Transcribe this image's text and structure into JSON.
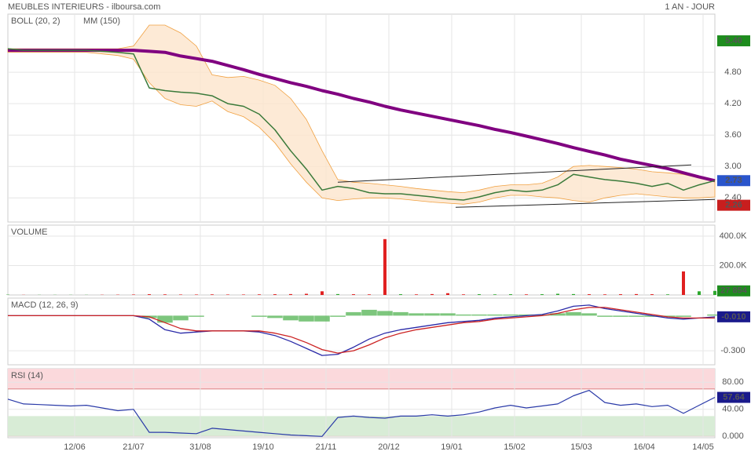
{
  "chart_data": [
    {
      "type": "line",
      "title": "MEUBLES INTERIEURS - ilboursa.com",
      "subtitle": "1 AN - JOUR",
      "x": [
        0,
        4,
        8,
        12,
        16,
        20,
        24,
        28,
        32,
        36,
        40,
        44,
        48,
        52,
        56,
        60,
        64,
        68,
        72,
        76,
        80,
        84,
        88,
        92,
        96,
        100,
        104,
        108,
        112,
        116,
        120,
        124,
        128,
        132,
        136,
        140,
        144,
        148,
        152,
        156,
        160,
        164,
        168,
        172,
        176,
        180
      ],
      "xlim": [
        0,
        180
      ],
      "ylim": [
        1.94,
        5.91
      ],
      "yticks": [
        {
          "value": 4.8,
          "label": "4.80"
        },
        {
          "value": 4.2,
          "label": "4.20"
        },
        {
          "value": 3.6,
          "label": "3.60"
        },
        {
          "value": 3.0,
          "label": "3.00"
        },
        {
          "value": 2.4,
          "label": "2.40"
        }
      ],
      "grid": true,
      "band": {
        "name": "BOLL (20, 2)",
        "color": "#f0a040",
        "upper": [
          5.25,
          5.25,
          5.25,
          5.25,
          5.25,
          5.25,
          5.25,
          5.25,
          5.3,
          5.7,
          5.7,
          5.55,
          5.3,
          4.75,
          4.7,
          4.72,
          4.65,
          4.55,
          4.3,
          3.9,
          3.3,
          2.75,
          2.7,
          2.68,
          2.65,
          2.62,
          2.58,
          2.55,
          2.52,
          2.5,
          2.55,
          2.62,
          2.65,
          2.65,
          2.68,
          2.8,
          3.0,
          3.02,
          3.0,
          2.98,
          2.95,
          2.9,
          2.88,
          2.85,
          2.78,
          2.75
        ],
        "lower": [
          5.18,
          5.18,
          5.18,
          5.18,
          5.18,
          5.18,
          5.15,
          5.12,
          5.05,
          4.6,
          4.3,
          4.18,
          4.15,
          4.25,
          4.05,
          3.95,
          3.75,
          3.45,
          3.05,
          2.7,
          2.4,
          2.35,
          2.38,
          2.4,
          2.4,
          2.38,
          2.35,
          2.32,
          2.3,
          2.28,
          2.32,
          2.4,
          2.45,
          2.45,
          2.42,
          2.4,
          2.35,
          2.32,
          2.4,
          2.45,
          2.48,
          2.45,
          2.42,
          2.4,
          2.4,
          2.42
        ]
      },
      "series": [
        {
          "name": "MM (150)",
          "color": "#800080",
          "width": 4,
          "values": [
            5.22,
            5.22,
            5.22,
            5.22,
            5.22,
            5.22,
            5.22,
            5.22,
            5.22,
            5.2,
            5.18,
            5.11,
            5.06,
            5.01,
            4.93,
            4.85,
            4.76,
            4.68,
            4.6,
            4.53,
            4.45,
            4.38,
            4.3,
            4.23,
            4.15,
            4.08,
            4.02,
            3.96,
            3.9,
            3.84,
            3.78,
            3.71,
            3.65,
            3.58,
            3.51,
            3.44,
            3.36,
            3.29,
            3.22,
            3.14,
            3.08,
            3.02,
            2.96,
            2.88,
            2.8,
            2.73
          ]
        },
        {
          "color": "#3a7a3a",
          "width": 1.5,
          "values": [
            5.25,
            5.22,
            5.22,
            5.22,
            5.22,
            5.22,
            5.2,
            5.18,
            5.15,
            4.5,
            4.45,
            4.42,
            4.4,
            4.35,
            4.2,
            4.15,
            4.0,
            3.7,
            3.3,
            2.95,
            2.55,
            2.62,
            2.58,
            2.5,
            2.48,
            2.48,
            2.45,
            2.42,
            2.38,
            2.36,
            2.42,
            2.5,
            2.55,
            2.52,
            2.55,
            2.65,
            2.85,
            2.8,
            2.75,
            2.72,
            2.68,
            2.62,
            2.68,
            2.55,
            2.65,
            2.73
          ]
        }
      ],
      "trendlines": [
        {
          "x": [
            84,
            174
          ],
          "y": [
            2.7,
            3.03
          ]
        },
        {
          "x": [
            114,
            180
          ],
          "y": [
            2.22,
            2.37
          ]
        }
      ],
      "badges": [
        {
          "value": 5.4,
          "label": "5.40",
          "color": "#1e8c1e"
        },
        {
          "value": 2.73,
          "label": "2.73",
          "color": "#2a55cc"
        },
        {
          "value": 2.26,
          "label": "2.26",
          "color": "#c81e1e"
        }
      ]
    },
    {
      "type": "bar",
      "title": "VOLUME",
      "title_color": "#2e9e2e",
      "x": [
        0,
        4,
        8,
        12,
        16,
        20,
        24,
        28,
        32,
        36,
        40,
        44,
        48,
        52,
        56,
        60,
        64,
        68,
        72,
        76,
        80,
        84,
        88,
        92,
        96,
        100,
        104,
        108,
        112,
        116,
        120,
        124,
        128,
        132,
        136,
        140,
        144,
        148,
        152,
        156,
        160,
        164,
        168,
        172,
        176,
        180
      ],
      "xlim": [
        0,
        180
      ],
      "ylim": [
        0,
        475000
      ],
      "yticks": [
        {
          "value": 400000,
          "label": "400.0K"
        },
        {
          "value": 200000,
          "label": "200.0K"
        }
      ],
      "grid": true,
      "up_color": "#2ea82e",
      "down_color": "#e02020",
      "values": [
        2000,
        1000,
        1000,
        1000,
        1000,
        1000,
        1500,
        2000,
        3000,
        5000,
        4000,
        3000,
        3000,
        4000,
        3000,
        3000,
        4000,
        5000,
        6000,
        8000,
        25000,
        6000,
        5000,
        4000,
        380000,
        5000,
        4000,
        6000,
        12000,
        4000,
        5000,
        4000,
        5000,
        4000,
        5000,
        8000,
        6000,
        5000,
        4000,
        5000,
        6000,
        5000,
        4000,
        160000,
        25000,
        27854
      ],
      "badges": [
        {
          "value": 27854,
          "label": "27 854",
          "color": "#1e8c1e"
        }
      ]
    },
    {
      "type": "line",
      "title": "MACD (12, 26, 9)",
      "title_color": "#2a2aa8",
      "x": [
        0,
        4,
        8,
        12,
        16,
        20,
        24,
        28,
        32,
        36,
        40,
        44,
        48,
        52,
        56,
        60,
        64,
        68,
        72,
        76,
        80,
        84,
        88,
        92,
        96,
        100,
        104,
        108,
        112,
        116,
        120,
        124,
        128,
        132,
        136,
        140,
        144,
        148,
        152,
        156,
        160,
        164,
        168,
        172,
        176,
        180
      ],
      "xlim": [
        0,
        180
      ],
      "ylim": [
        -0.42,
        0.15
      ],
      "yticks": [
        {
          "value": -0.3,
          "label": "-0.300"
        }
      ],
      "grid": true,
      "histogram": {
        "color": "#5cb85c",
        "values": [
          0,
          0,
          0,
          0,
          0,
          0,
          0,
          0,
          0,
          -0.02,
          -0.06,
          -0.04,
          -0.01,
          0,
          0,
          0,
          -0.01,
          -0.02,
          -0.04,
          -0.05,
          -0.05,
          -0.01,
          0.03,
          0.05,
          0.04,
          0.03,
          0.02,
          0.02,
          0.02,
          0.01,
          0.01,
          0.01,
          0.01,
          0.01,
          0.01,
          0.02,
          0.03,
          0.02,
          -0.01,
          -0.01,
          -0.01,
          -0.01,
          -0.01,
          -0.01,
          0,
          0.01
        ]
      },
      "series": [
        {
          "color": "#2a2aa8",
          "width": 1.3,
          "values": [
            0,
            0,
            0,
            0,
            0,
            0,
            0,
            0,
            0,
            -0.03,
            -0.12,
            -0.15,
            -0.14,
            -0.13,
            -0.13,
            -0.13,
            -0.14,
            -0.17,
            -0.22,
            -0.28,
            -0.34,
            -0.33,
            -0.27,
            -0.2,
            -0.15,
            -0.12,
            -0.1,
            -0.08,
            -0.06,
            -0.05,
            -0.04,
            -0.02,
            -0.01,
            0,
            0.01,
            0.04,
            0.08,
            0.09,
            0.06,
            0.04,
            0.02,
            0,
            -0.02,
            -0.03,
            -0.02,
            -0.01
          ]
        },
        {
          "color": "#cc2222",
          "width": 1.3,
          "values": [
            0,
            0,
            0,
            0,
            0,
            0,
            0,
            0,
            0,
            -0.01,
            -0.06,
            -0.11,
            -0.13,
            -0.13,
            -0.13,
            -0.13,
            -0.13,
            -0.15,
            -0.18,
            -0.23,
            -0.29,
            -0.32,
            -0.3,
            -0.25,
            -0.19,
            -0.15,
            -0.12,
            -0.1,
            -0.08,
            -0.06,
            -0.05,
            -0.03,
            -0.02,
            -0.01,
            0,
            0.02,
            0.05,
            0.07,
            0.07,
            0.05,
            0.03,
            0.01,
            -0.01,
            -0.02,
            -0.02,
            -0.02
          ]
        }
      ],
      "badges": [
        {
          "value": -0.01,
          "label": "-0.010",
          "color": "#1a1a8c"
        }
      ]
    },
    {
      "type": "line",
      "title": "RSI (14)",
      "title_color": "#2a2aa8",
      "x": [
        0,
        4,
        8,
        12,
        16,
        20,
        24,
        28,
        32,
        36,
        40,
        44,
        48,
        52,
        56,
        60,
        64,
        68,
        72,
        76,
        80,
        84,
        88,
        92,
        96,
        100,
        104,
        108,
        112,
        116,
        120,
        124,
        128,
        132,
        136,
        140,
        144,
        148,
        152,
        156,
        160,
        164,
        168,
        172,
        176,
        180
      ],
      "xlim": [
        0,
        180
      ],
      "ylim": [
        -2,
        100
      ],
      "xticks": [
        {
          "value": 17,
          "label": "12/06"
        },
        {
          "value": 32,
          "label": "21/07"
        },
        {
          "value": 49,
          "label": "31/08"
        },
        {
          "value": 65,
          "label": "19/10"
        },
        {
          "value": 81,
          "label": "21/11"
        },
        {
          "value": 97,
          "label": "20/12"
        },
        {
          "value": 113,
          "label": "19/01"
        },
        {
          "value": 129,
          "label": "15/02"
        },
        {
          "value": 146,
          "label": "15/03"
        },
        {
          "value": 162,
          "label": "16/04"
        },
        {
          "value": 177,
          "label": "14/05"
        }
      ],
      "yticks": [
        {
          "value": 80,
          "label": "80.00"
        },
        {
          "value": 40,
          "label": "40.00"
        },
        {
          "value": 0,
          "label": "0.000"
        }
      ],
      "grid": true,
      "zones": [
        {
          "range": [
            70,
            100
          ],
          "color": "#fbd9dc"
        },
        {
          "range": [
            0,
            30
          ],
          "color": "#d8ecd6"
        }
      ],
      "series": [
        {
          "color": "#2a3aa8",
          "width": 1.2,
          "values": [
            55,
            48,
            47,
            46,
            45,
            46,
            42,
            38,
            40,
            6,
            6,
            5,
            4,
            12,
            10,
            8,
            6,
            4,
            2,
            1,
            0,
            28,
            30,
            28,
            27,
            30,
            30,
            32,
            30,
            32,
            36,
            42,
            46,
            42,
            45,
            48,
            60,
            68,
            50,
            46,
            48,
            44,
            46,
            34,
            46,
            57.64
          ]
        }
      ],
      "badges": [
        {
          "value": 57.64,
          "label": "57.64",
          "color": "#1a1a8c"
        }
      ]
    }
  ]
}
